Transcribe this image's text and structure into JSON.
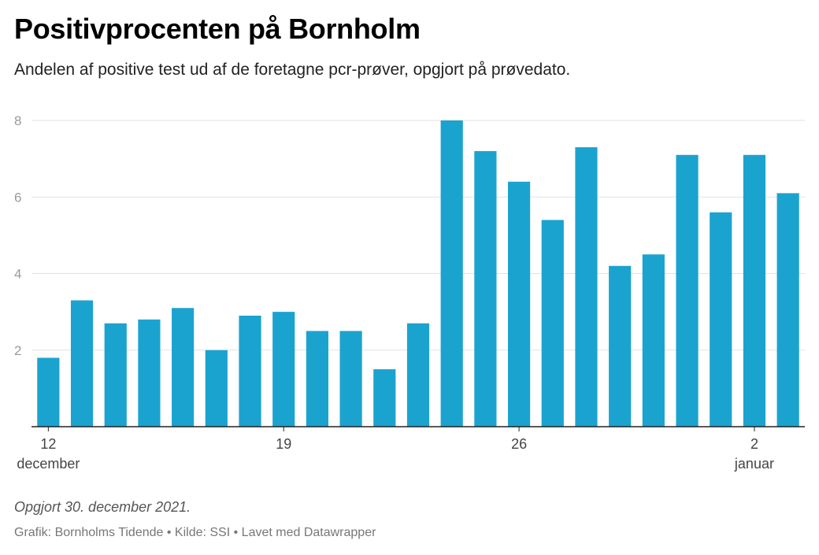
{
  "header": {
    "title": "Positivprocenten på Bornholm",
    "subtitle": "Andelen af positive test ud af de foretagne pcr-prøver, opgjort på prøvedato."
  },
  "footer": {
    "note": "Opgjort 30. december 2021.",
    "byline": "Grafik: Bornholms Tidende • Kilde: SSI • Lavet med Datawrapper"
  },
  "chart_data": {
    "type": "bar",
    "bar_color": "#1ba3d0",
    "categories": [
      "2021-12-12",
      "2021-12-13",
      "2021-12-14",
      "2021-12-15",
      "2021-12-16",
      "2021-12-17",
      "2021-12-18",
      "2021-12-19",
      "2021-12-20",
      "2021-12-21",
      "2021-12-22",
      "2021-12-23",
      "2021-12-24",
      "2021-12-25",
      "2021-12-26",
      "2021-12-27",
      "2021-12-28",
      "2021-12-29",
      "2021-12-30",
      "2021-12-31",
      "2022-01-01",
      "2022-01-02",
      "2022-01-03"
    ],
    "values": [
      1.8,
      3.3,
      2.7,
      2.8,
      3.1,
      2.0,
      2.9,
      3.0,
      2.5,
      2.5,
      1.5,
      2.7,
      8.0,
      7.2,
      6.4,
      5.4,
      7.3,
      4.2,
      4.5,
      7.1,
      5.6,
      7.1,
      6.1
    ],
    "ylim": [
      0,
      8
    ],
    "yticks": [
      "2",
      "4",
      "6",
      "8"
    ],
    "xticks": [
      {
        "index": 0,
        "label": "12",
        "sublabel": "december"
      },
      {
        "index": 7,
        "label": "19",
        "sublabel": ""
      },
      {
        "index": 14,
        "label": "26",
        "sublabel": ""
      },
      {
        "index": 21,
        "label": "2",
        "sublabel": "januar"
      }
    ],
    "grid": true,
    "legend": "none"
  }
}
